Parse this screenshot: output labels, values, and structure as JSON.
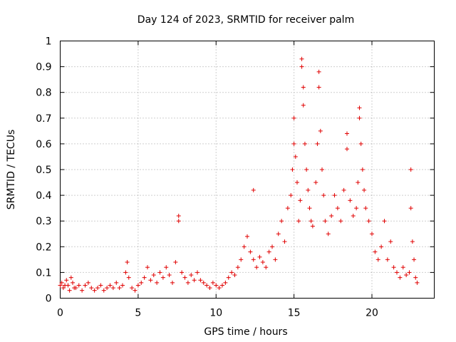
{
  "chart_data": {
    "type": "scatter",
    "title": "Day 124 of 2023, SRMTID for receiver palm",
    "xlabel": "GPS time / hours",
    "ylabel": "SRMTID / TECUs",
    "xlim": [
      0,
      24
    ],
    "ylim": [
      0,
      1
    ],
    "xticks": [
      0,
      5,
      10,
      15,
      20
    ],
    "xtick_labels": [
      "0",
      "5",
      "10",
      "15",
      "20"
    ],
    "yticks": [
      0,
      0.1,
      0.2,
      0.3,
      0.4,
      0.5,
      0.6,
      0.7,
      0.8,
      0.9,
      1
    ],
    "ytick_labels": [
      "0",
      "0.1",
      "0.2",
      "0.3",
      "0.4",
      "0.5",
      "0.6",
      "0.7",
      "0.8",
      "0.9",
      "1"
    ],
    "grid": true,
    "marker": "+",
    "marker_color": "#e00000",
    "series": [
      {
        "name": "SRMTID",
        "points": [
          [
            0.0,
            0.05
          ],
          [
            0.1,
            0.06
          ],
          [
            0.2,
            0.04
          ],
          [
            0.3,
            0.05
          ],
          [
            0.4,
            0.07
          ],
          [
            0.5,
            0.05
          ],
          [
            0.6,
            0.03
          ],
          [
            0.7,
            0.08
          ],
          [
            0.8,
            0.06
          ],
          [
            0.9,
            0.04
          ],
          [
            1.0,
            0.04
          ],
          [
            1.2,
            0.05
          ],
          [
            1.4,
            0.03
          ],
          [
            1.6,
            0.05
          ],
          [
            1.8,
            0.06
          ],
          [
            2.0,
            0.04
          ],
          [
            2.2,
            0.03
          ],
          [
            2.4,
            0.04
          ],
          [
            2.6,
            0.05
          ],
          [
            2.8,
            0.03
          ],
          [
            3.0,
            0.04
          ],
          [
            3.2,
            0.05
          ],
          [
            3.4,
            0.04
          ],
          [
            3.6,
            0.06
          ],
          [
            3.8,
            0.04
          ],
          [
            4.0,
            0.05
          ],
          [
            4.2,
            0.1
          ],
          [
            4.3,
            0.14
          ],
          [
            4.4,
            0.08
          ],
          [
            4.6,
            0.04
          ],
          [
            4.8,
            0.03
          ],
          [
            5.0,
            0.05
          ],
          [
            5.2,
            0.06
          ],
          [
            5.4,
            0.08
          ],
          [
            5.6,
            0.12
          ],
          [
            5.8,
            0.07
          ],
          [
            6.0,
            0.09
          ],
          [
            6.2,
            0.06
          ],
          [
            6.4,
            0.1
          ],
          [
            6.6,
            0.08
          ],
          [
            6.8,
            0.12
          ],
          [
            7.0,
            0.09
          ],
          [
            7.2,
            0.06
          ],
          [
            7.4,
            0.14
          ],
          [
            7.6,
            0.3
          ],
          [
            7.6,
            0.32
          ],
          [
            7.8,
            0.1
          ],
          [
            8.0,
            0.08
          ],
          [
            8.2,
            0.06
          ],
          [
            8.4,
            0.09
          ],
          [
            8.6,
            0.07
          ],
          [
            8.8,
            0.1
          ],
          [
            9.0,
            0.07
          ],
          [
            9.2,
            0.06
          ],
          [
            9.4,
            0.05
          ],
          [
            9.6,
            0.04
          ],
          [
            9.8,
            0.06
          ],
          [
            10.0,
            0.05
          ],
          [
            10.2,
            0.04
          ],
          [
            10.4,
            0.05
          ],
          [
            10.6,
            0.06
          ],
          [
            10.8,
            0.08
          ],
          [
            11.0,
            0.1
          ],
          [
            11.2,
            0.09
          ],
          [
            11.4,
            0.12
          ],
          [
            11.6,
            0.15
          ],
          [
            11.8,
            0.2
          ],
          [
            12.0,
            0.24
          ],
          [
            12.2,
            0.18
          ],
          [
            12.4,
            0.15
          ],
          [
            12.4,
            0.42
          ],
          [
            12.6,
            0.12
          ],
          [
            12.8,
            0.16
          ],
          [
            13.0,
            0.14
          ],
          [
            13.2,
            0.12
          ],
          [
            13.4,
            0.18
          ],
          [
            13.6,
            0.2
          ],
          [
            13.8,
            0.15
          ],
          [
            14.0,
            0.25
          ],
          [
            14.2,
            0.3
          ],
          [
            14.4,
            0.22
          ],
          [
            14.6,
            0.35
          ],
          [
            14.8,
            0.4
          ],
          [
            14.9,
            0.5
          ],
          [
            15.0,
            0.6
          ],
          [
            15.0,
            0.7
          ],
          [
            15.1,
            0.55
          ],
          [
            15.2,
            0.45
          ],
          [
            15.3,
            0.3
          ],
          [
            15.4,
            0.38
          ],
          [
            15.5,
            0.93
          ],
          [
            15.5,
            0.9
          ],
          [
            15.6,
            0.82
          ],
          [
            15.6,
            0.75
          ],
          [
            15.7,
            0.6
          ],
          [
            15.8,
            0.5
          ],
          [
            15.9,
            0.42
          ],
          [
            16.0,
            0.35
          ],
          [
            16.1,
            0.3
          ],
          [
            16.2,
            0.28
          ],
          [
            16.4,
            0.45
          ],
          [
            16.5,
            0.6
          ],
          [
            16.6,
            0.88
          ],
          [
            16.6,
            0.82
          ],
          [
            16.7,
            0.65
          ],
          [
            16.8,
            0.5
          ],
          [
            16.9,
            0.4
          ],
          [
            17.0,
            0.3
          ],
          [
            17.2,
            0.25
          ],
          [
            17.4,
            0.32
          ],
          [
            17.6,
            0.4
          ],
          [
            17.8,
            0.35
          ],
          [
            18.0,
            0.3
          ],
          [
            18.2,
            0.42
          ],
          [
            18.4,
            0.58
          ],
          [
            18.4,
            0.64
          ],
          [
            18.6,
            0.38
          ],
          [
            18.8,
            0.32
          ],
          [
            19.0,
            0.35
          ],
          [
            19.1,
            0.45
          ],
          [
            19.2,
            0.74
          ],
          [
            19.2,
            0.7
          ],
          [
            19.3,
            0.6
          ],
          [
            19.4,
            0.5
          ],
          [
            19.5,
            0.42
          ],
          [
            19.6,
            0.35
          ],
          [
            19.8,
            0.3
          ],
          [
            20.0,
            0.25
          ],
          [
            20.2,
            0.18
          ],
          [
            20.4,
            0.15
          ],
          [
            20.6,
            0.2
          ],
          [
            20.8,
            0.3
          ],
          [
            21.0,
            0.15
          ],
          [
            21.2,
            0.22
          ],
          [
            21.4,
            0.12
          ],
          [
            21.6,
            0.1
          ],
          [
            21.8,
            0.08
          ],
          [
            22.0,
            0.12
          ],
          [
            22.2,
            0.09
          ],
          [
            22.4,
            0.1
          ],
          [
            22.5,
            0.35
          ],
          [
            22.5,
            0.5
          ],
          [
            22.6,
            0.22
          ],
          [
            22.7,
            0.15
          ],
          [
            22.8,
            0.08
          ],
          [
            22.9,
            0.06
          ]
        ]
      }
    ]
  }
}
